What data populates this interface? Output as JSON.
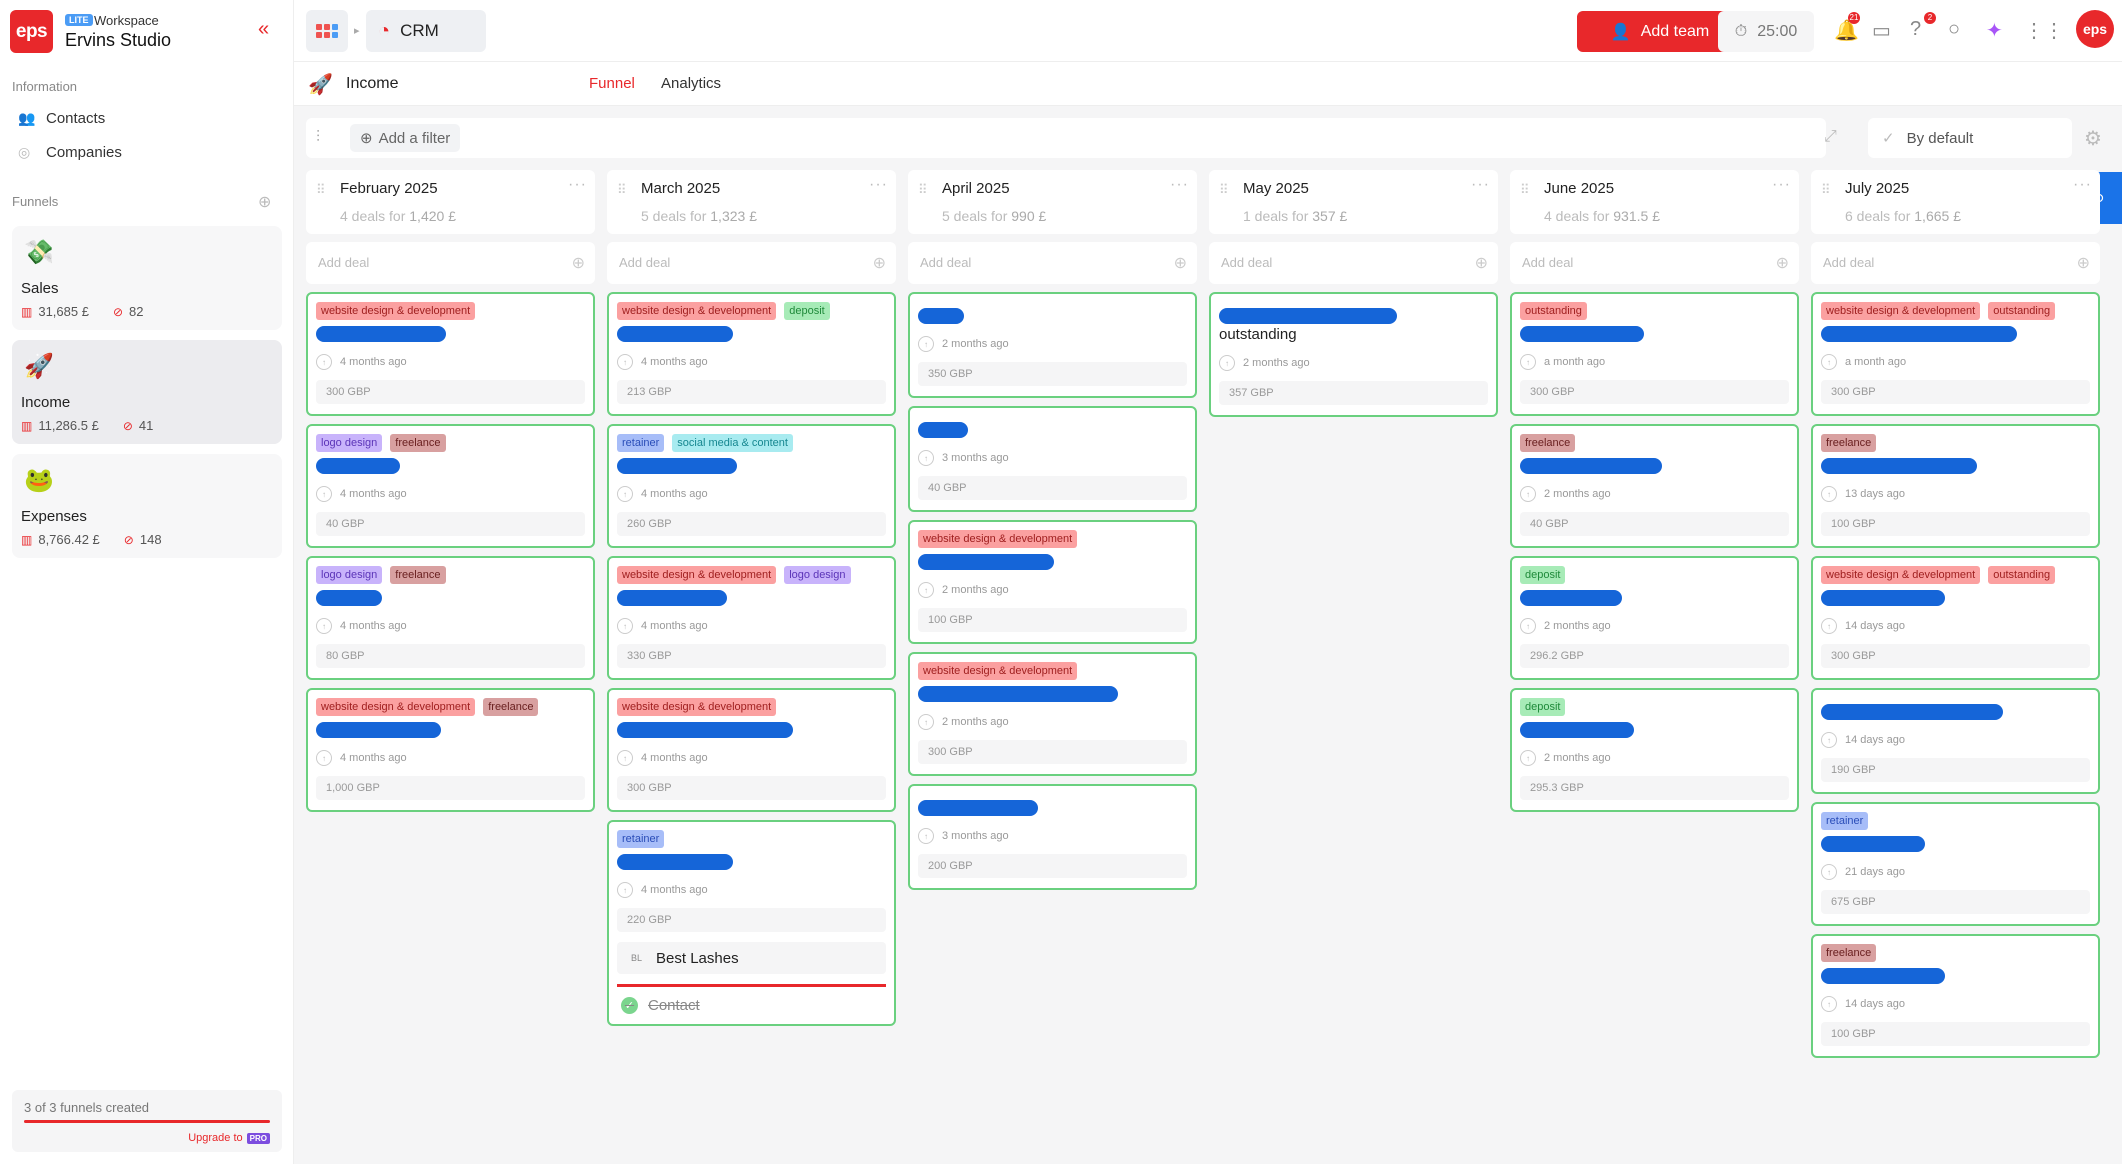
{
  "workspace": {
    "logo": "eps",
    "badge": "LITE",
    "label": "Workspace",
    "name": "Ervins Studio"
  },
  "sidebar": {
    "info_label": "Information",
    "items": [
      {
        "label": "Contacts",
        "icon": "contacts-icon"
      },
      {
        "label": "Companies",
        "icon": "companies-icon"
      }
    ],
    "funnels_label": "Funnels",
    "funnels": [
      {
        "name": "Sales",
        "icon": "💸",
        "amount": "31,685 £",
        "count": "82",
        "active": false
      },
      {
        "name": "Income",
        "icon": "🚀",
        "amount": "11,286.5 £",
        "count": "41",
        "active": true
      },
      {
        "name": "Expenses",
        "icon": "🐸",
        "amount": "8,766.42 £",
        "count": "148",
        "active": false
      }
    ],
    "quota": {
      "text": "3 of 3 funnels created",
      "upgrade": "Upgrade to",
      "pro": "PRO"
    }
  },
  "topbar": {
    "app": "CRM",
    "add_team": "Add team",
    "timer": "25:00",
    "notif_count": "21",
    "help_count": "2",
    "avatar": "eps"
  },
  "page": {
    "title": "Income",
    "tabs": [
      {
        "label": "Funnel",
        "active": true
      },
      {
        "label": "Analytics",
        "active": false
      }
    ]
  },
  "filter": {
    "add_filter": "Add a filter",
    "sort": "By default"
  },
  "colors": {
    "accent": "#e8282b",
    "card_border": "#6ad07f",
    "redaction": "#1565d8"
  },
  "columns": [
    {
      "name": "February 2025",
      "count_text": "4 deals for",
      "total": "1,420 £",
      "add_deal": "Add deal",
      "deals": [
        {
          "tags": [
            [
              "website design & development",
              "t-red"
            ]
          ],
          "title": "",
          "time": "4 months ago",
          "amount": "300 GBP"
        },
        {
          "tags": [
            [
              "logo design",
              "t-purple"
            ],
            [
              "freelance",
              "t-brown"
            ]
          ],
          "title": "",
          "time": "4 months ago",
          "amount": "40 GBP"
        },
        {
          "tags": [
            [
              "logo design",
              "t-purple"
            ],
            [
              "freelance",
              "t-brown"
            ]
          ],
          "title": "",
          "time": "4 months ago",
          "amount": "80 GBP"
        },
        {
          "tags": [
            [
              "website design & development",
              "t-red"
            ],
            [
              "freelance",
              "t-brown"
            ]
          ],
          "title": "",
          "time": "4 months ago",
          "amount": "1,000 GBP"
        }
      ]
    },
    {
      "name": "March 2025",
      "count_text": "5 deals for",
      "total": "1,323 £",
      "add_deal": "Add deal",
      "deals": [
        {
          "tags": [
            [
              "website design & development",
              "t-red"
            ],
            [
              "deposit",
              "t-green"
            ]
          ],
          "title": "",
          "time": "4 months ago",
          "amount": "213 GBP"
        },
        {
          "tags": [
            [
              "retainer",
              "t-blue"
            ],
            [
              "social media & content",
              "t-teal"
            ]
          ],
          "title": "",
          "time": "4 months ago",
          "amount": "260 GBP"
        },
        {
          "tags": [
            [
              "website design & development",
              "t-red"
            ],
            [
              "logo design",
              "t-purple"
            ]
          ],
          "title": "",
          "time": "4 months ago",
          "amount": "330 GBP"
        },
        {
          "tags": [
            [
              "website design & development",
              "t-red"
            ]
          ],
          "title": "",
          "time": "4 months ago",
          "amount": "300 GBP"
        },
        {
          "tags": [
            [
              "retainer",
              "t-blue"
            ]
          ],
          "title": "",
          "time": "4 months ago",
          "amount": "220 GBP",
          "company": "Best Lashes",
          "company_abbr": "BL",
          "contact": "Contact"
        }
      ]
    },
    {
      "name": "April 2025",
      "count_text": "5 deals for",
      "total": "990 £",
      "add_deal": "Add deal",
      "deals": [
        {
          "tags": [],
          "title": "",
          "time": "2 months ago",
          "amount": "350 GBP"
        },
        {
          "tags": [],
          "title": "",
          "time": "3 months ago",
          "amount": "40 GBP"
        },
        {
          "tags": [
            [
              "website design & development",
              "t-red"
            ]
          ],
          "title": "",
          "time": "2 months ago",
          "amount": "100 GBP"
        },
        {
          "tags": [
            [
              "website design & development",
              "t-red"
            ]
          ],
          "title": "",
          "time": "2 months ago",
          "amount": "300 GBP"
        },
        {
          "tags": [],
          "title": "",
          "time": "3 months ago",
          "amount": "200 GBP"
        }
      ]
    },
    {
      "name": "May 2025",
      "count_text": "1 deals for",
      "total": "357 £",
      "add_deal": "Add deal",
      "deals": [
        {
          "tags": [],
          "title": "outstanding",
          "time": "2 months ago",
          "amount": "357 GBP"
        }
      ]
    },
    {
      "name": "June 2025",
      "count_text": "4 deals for",
      "total": "931.5 £",
      "add_deal": "Add deal",
      "deals": [
        {
          "tags": [
            [
              "outstanding",
              "t-red"
            ]
          ],
          "title": "",
          "time": "a month ago",
          "amount": "300 GBP"
        },
        {
          "tags": [
            [
              "freelance",
              "t-brown"
            ]
          ],
          "title": "",
          "time": "2 months ago",
          "amount": "40 GBP"
        },
        {
          "tags": [
            [
              "deposit",
              "t-green"
            ]
          ],
          "title": "",
          "time": "2 months ago",
          "amount": "296.2 GBP"
        },
        {
          "tags": [
            [
              "deposit",
              "t-green"
            ]
          ],
          "title": "",
          "time": "2 months ago",
          "amount": "295.3 GBP"
        }
      ]
    },
    {
      "name": "July 2025",
      "count_text": "6 deals for",
      "total": "1,665 £",
      "add_deal": "Add deal",
      "deals": [
        {
          "tags": [
            [
              "website design & development",
              "t-red"
            ],
            [
              "outstanding",
              "t-red"
            ]
          ],
          "title": "",
          "time": "a month ago",
          "amount": "300 GBP"
        },
        {
          "tags": [
            [
              "freelance",
              "t-brown"
            ]
          ],
          "title": "",
          "time": "13 days ago",
          "amount": "100 GBP"
        },
        {
          "tags": [
            [
              "website design & development",
              "t-red"
            ],
            [
              "outstanding",
              "t-red"
            ]
          ],
          "title": "",
          "time": "14 days ago",
          "amount": "300 GBP"
        },
        {
          "tags": [],
          "title": "",
          "time": "14 days ago",
          "amount": "190 GBP"
        },
        {
          "tags": [
            [
              "retainer",
              "t-blue"
            ]
          ],
          "title": "",
          "time": "21 days ago",
          "amount": "675 GBP"
        },
        {
          "tags": [
            [
              "freelance",
              "t-brown"
            ]
          ],
          "title": "",
          "time": "14 days ago",
          "amount": "100 GBP"
        }
      ]
    }
  ]
}
